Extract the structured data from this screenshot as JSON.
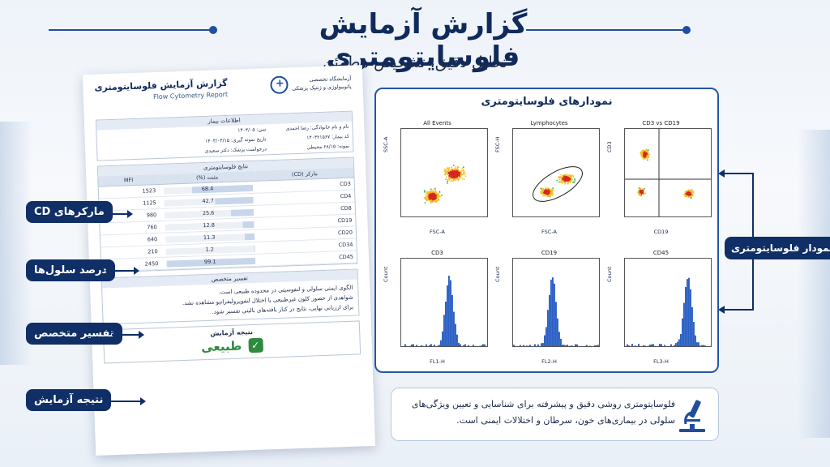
{
  "header": {
    "title": "گزارش آزمایش فلوسایتومتری",
    "subtitle": "تحلیل دقیق، تشخیص مطمئن"
  },
  "report": {
    "title": "گزارش آزمایش فلوسایتومتری",
    "title_en": "Flow Cytometry Report",
    "lab_line1": "آزمایشگاه تخصصی",
    "lab_line2": "پاتوبیولوژی و ژنتیک پزشکی",
    "patient_section": "اطلاعات بیمار",
    "patient": {
      "name_label": "نام و نام خانوادگی:",
      "name": "رضا احمدی",
      "age_label": "سن:",
      "age": "۱۴۰۳/۰۵",
      "id_label": "کد بیمار:",
      "id": "۱۴۰۳۲۱۵۶۷",
      "date_label": "تاریخ نمونه گیری:",
      "date": "۱۴۰۳/۰۳/۱۵",
      "sample_label": "نمونه:",
      "sample": "۶۸/۱۵ محیطی",
      "doctor_label": "درخواست پزشک:",
      "doctor": "دکتر سعیدی"
    },
    "results_section": "نتایج فلوسایتومتری",
    "columns": [
      "مارکر (CD)",
      "مثبت (%)",
      "MFI"
    ],
    "rows": [
      {
        "marker": "CD3",
        "percent": "68.4",
        "pct": 68.4,
        "mfi": "1523"
      },
      {
        "marker": "CD4",
        "percent": "42.7",
        "pct": 42.7,
        "mfi": "1125"
      },
      {
        "marker": "CD8",
        "percent": "25.6",
        "pct": 25.6,
        "mfi": "980"
      },
      {
        "marker": "CD19",
        "percent": "12.8",
        "pct": 12.8,
        "mfi": "760"
      },
      {
        "marker": "CD20",
        "percent": "11.3",
        "pct": 11.3,
        "mfi": "640"
      },
      {
        "marker": "CD34",
        "percent": "1.2",
        "pct": 1.2,
        "mfi": "210"
      },
      {
        "marker": "CD45",
        "percent": "99.1",
        "pct": 99.1,
        "mfi": "2450"
      }
    ],
    "interp_section": "تفسیر متخصص",
    "interp_lines": [
      "الگوی ایمنی سلولی و لنفوسیتی در محدوده طبیعی است.",
      "شواهدی از حضور کلون غیرطبیعی یا اختلال لنفوپرولیفراتیو مشاهده نشد.",
      "برای ارزیابی نهایی، نتایج در کنار یافته‌های بالینی تفسیر شود."
    ],
    "result_title": "نتیجه آزمایش",
    "result_value": "طبیعی"
  },
  "side_labels": {
    "cd": "مارکرهای CD",
    "percent": "درصد سلول‌ها",
    "interp": "تفسیر متخصص",
    "result": "نتیجه آزمایش",
    "plots": "نمودار فلوسایتومتری"
  },
  "plots": {
    "title": "نمودارهای فلوسایتومتری",
    "scatter": [
      {
        "title": "All Events",
        "xlabel": "FSC-A",
        "ylabel": "SSC-A"
      },
      {
        "title": "Lymphocytes",
        "xlabel": "FSC-A",
        "ylabel": "FSC-H"
      },
      {
        "title": "CD3 vs CD19",
        "xlabel": "CD19",
        "ylabel": "CD3"
      }
    ],
    "hist": [
      {
        "title": "CD3",
        "xlabel": "FL1-H",
        "ylabel": "Count",
        "peak": 0.55
      },
      {
        "title": "CD19",
        "xlabel": "FL2-H",
        "ylabel": "Count",
        "peak": 0.45
      },
      {
        "title": "CD45",
        "xlabel": "FL3-H",
        "ylabel": "Count",
        "peak": 0.72
      }
    ],
    "ticks": [
      "0",
      "50",
      "100",
      "150",
      "200",
      "250"
    ]
  },
  "info": {
    "text": "فلوسایتومتری روشی دقیق و پیشرفته برای شناسایی و تعیین ویژگی‌های سلولی در بیماری‌های خون، سرطان و اختلالات ایمنی است."
  },
  "colors": {
    "navy": "#0f2f66",
    "accent": "#2356a6",
    "success": "#2e8b3e"
  }
}
